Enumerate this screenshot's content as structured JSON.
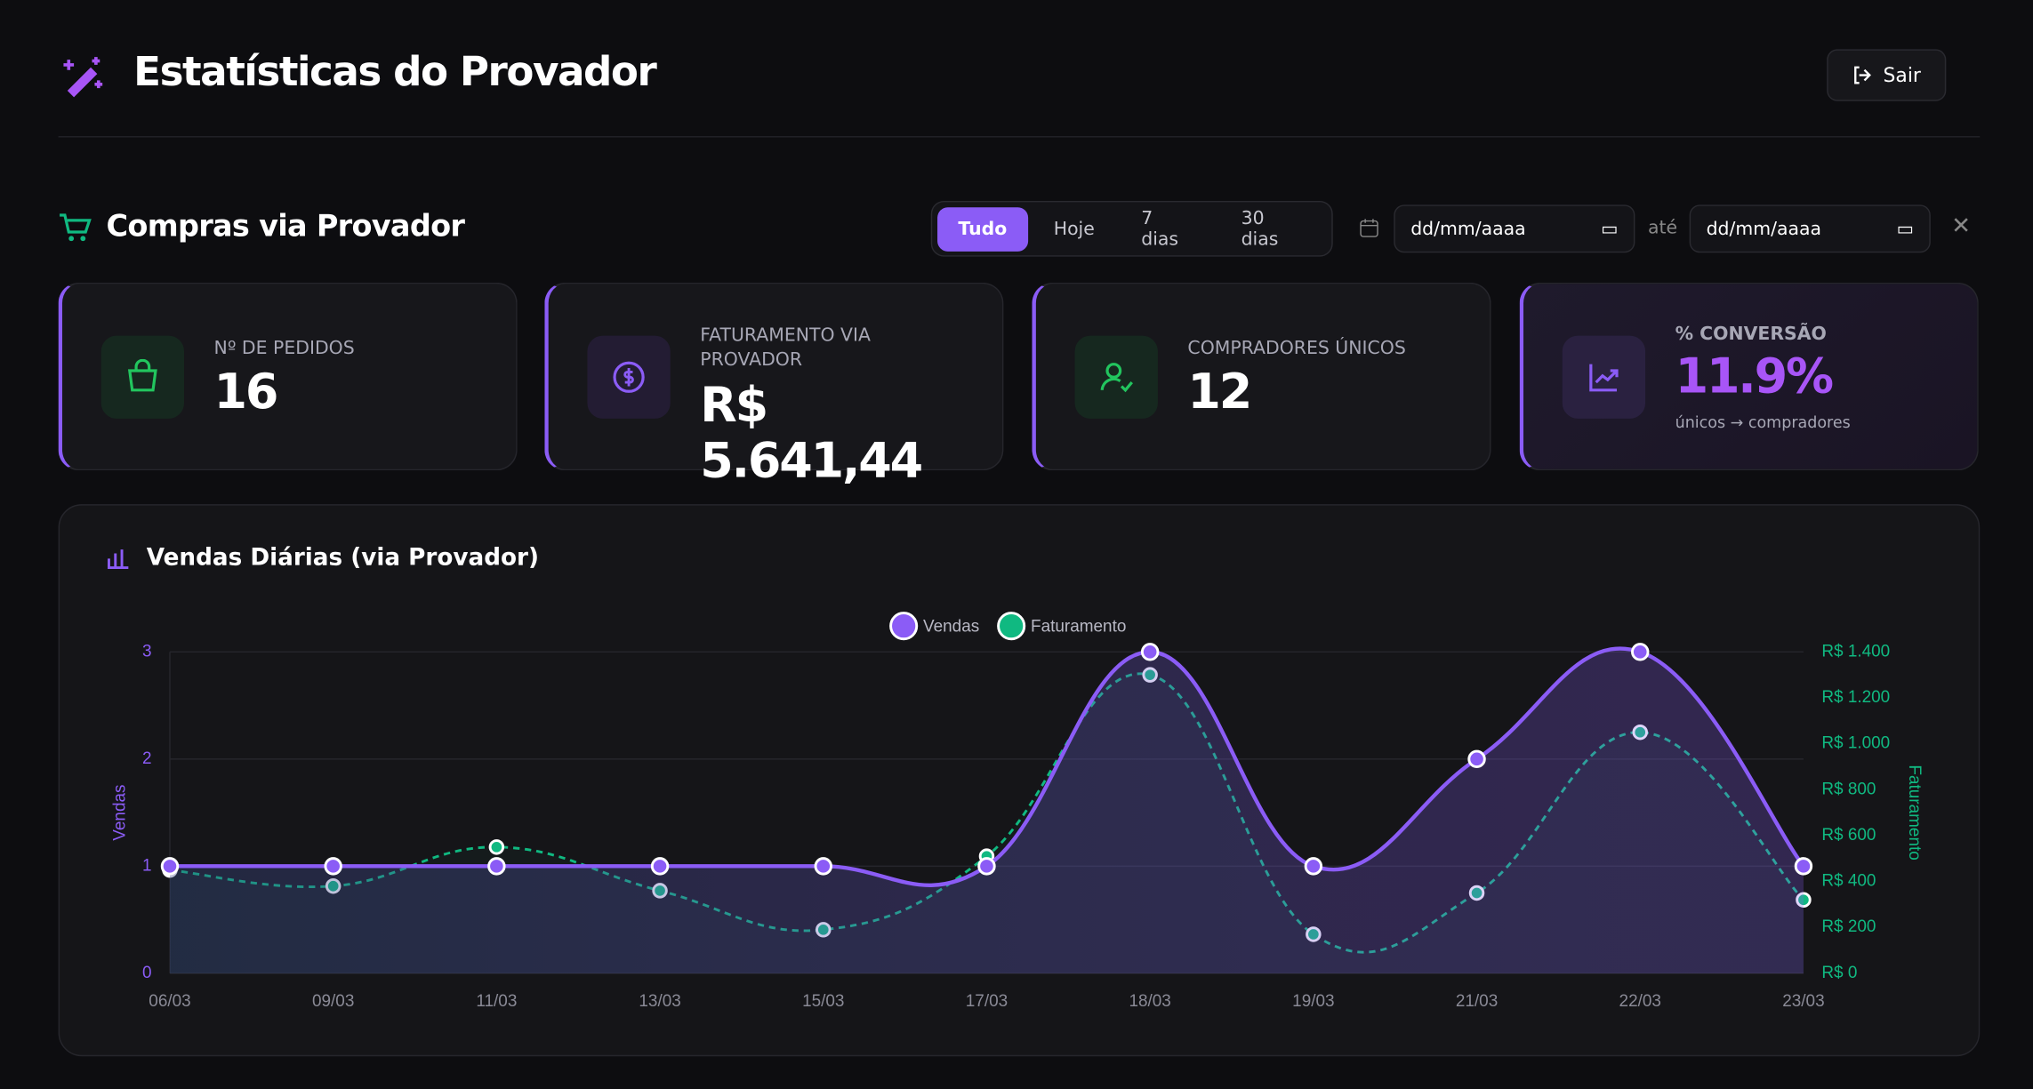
{
  "header": {
    "title": "Estatísticas do Provador",
    "logout": "Sair"
  },
  "section": {
    "title": "Compras via Provador",
    "filters": [
      "Tudo",
      "Hoje",
      "7 dias",
      "30 dias"
    ],
    "date_placeholder": "dd/mm/aaaa",
    "until": "até"
  },
  "cards": [
    {
      "label": "Nº DE PEDIDOS",
      "value": "16"
    },
    {
      "label": "FATURAMENTO VIA PROVADOR",
      "value": "R$ 5.641,44"
    },
    {
      "label": "COMPRADORES ÚNICOS",
      "value": "12"
    },
    {
      "label": "% CONVERSÃO",
      "value": "11.9%",
      "note": "únicos → compradores"
    }
  ],
  "chart_data": {
    "type": "line",
    "title": "Vendas Diárias (via Provador)",
    "y_label": "Vendas",
    "y2_label": "Faturamento",
    "categories": [
      "06/03",
      "09/03",
      "11/03",
      "13/03",
      "15/03",
      "17/03",
      "18/03",
      "19/03",
      "21/03",
      "22/03",
      "23/03"
    ],
    "series": [
      {
        "name": "Vendas",
        "color": "#8b5cf6",
        "values": [
          1,
          1,
          1,
          1,
          1,
          1,
          3,
          1,
          2,
          3,
          1
        ]
      },
      {
        "name": "Faturamento",
        "color": "#10b981",
        "axis": "y2",
        "values": [
          450,
          380,
          550,
          360,
          190,
          510,
          1300,
          170,
          350,
          1050,
          320
        ]
      }
    ],
    "ylim": [
      0,
      3
    ],
    "yticks": [
      0,
      1,
      2,
      3
    ],
    "y2lim": [
      0,
      1400
    ],
    "y2ticks": [
      {
        "value": 0,
        "label": "R$ 0"
      },
      {
        "value": 200,
        "label": "R$ 200"
      },
      {
        "value": 400,
        "label": "R$ 400"
      },
      {
        "value": 600,
        "label": "R$ 600"
      },
      {
        "value": 800,
        "label": "R$ 800"
      },
      {
        "value": 1000,
        "label": "R$ 1.000"
      },
      {
        "value": 1200,
        "label": "R$ 1.200"
      },
      {
        "value": 1400,
        "label": "R$ 1.400"
      }
    ],
    "grid": true,
    "legend": "top"
  }
}
